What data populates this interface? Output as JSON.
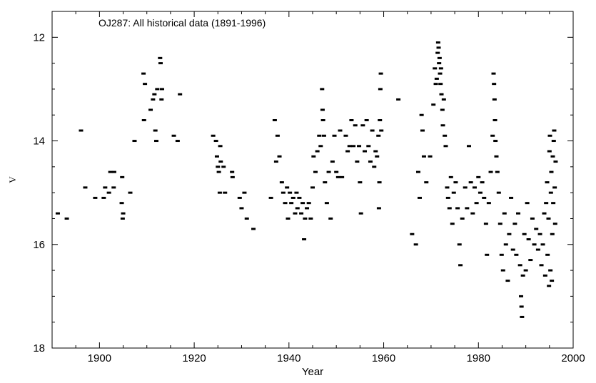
{
  "chart_data": {
    "type": "scatter",
    "title": "OJ287: All historical data (1891-1996)",
    "xlabel": "Year",
    "ylabel": "V",
    "xlim": [
      1890,
      2000
    ],
    "ylim": [
      18,
      11.5
    ],
    "y_inverted": true,
    "x_ticks": [
      1900,
      1920,
      1940,
      1960,
      1980,
      2000
    ],
    "y_ticks": [
      12,
      14,
      16,
      18
    ],
    "grid": false,
    "marker": "small filled dash",
    "series": [
      {
        "values": [
          [
            1891.2,
            15.4
          ],
          [
            1893.1,
            15.5
          ],
          [
            1896.1,
            13.8
          ],
          [
            1897.0,
            14.9
          ],
          [
            1899.1,
            15.1
          ],
          [
            1900.9,
            15.1
          ],
          [
            1901.2,
            14.9
          ],
          [
            1902.0,
            15.0
          ],
          [
            1902.3,
            14.6
          ],
          [
            1903.0,
            14.9
          ],
          [
            1903.1,
            14.6
          ],
          [
            1904.7,
            15.2
          ],
          [
            1904.8,
            14.7
          ],
          [
            1904.9,
            15.5
          ],
          [
            1905.0,
            15.4
          ],
          [
            1906.5,
            15.0
          ],
          [
            1907.4,
            14.0
          ],
          [
            1909.3,
            12.7
          ],
          [
            1909.6,
            12.9
          ],
          [
            1909.4,
            13.6
          ],
          [
            1910.8,
            13.4
          ],
          [
            1911.3,
            13.2
          ],
          [
            1911.6,
            13.1
          ],
          [
            1911.8,
            13.8
          ],
          [
            1912.0,
            14.0
          ],
          [
            1912.2,
            13.0
          ],
          [
            1912.8,
            12.4
          ],
          [
            1912.9,
            12.5
          ],
          [
            1913.1,
            13.2
          ],
          [
            1913.2,
            13.0
          ],
          [
            1915.7,
            13.9
          ],
          [
            1916.5,
            14.0
          ],
          [
            1917.0,
            13.1
          ],
          [
            1924.0,
            13.9
          ],
          [
            1924.6,
            14.0
          ],
          [
            1924.8,
            14.3
          ],
          [
            1925.0,
            14.5
          ],
          [
            1925.2,
            14.6
          ],
          [
            1925.4,
            15.0
          ],
          [
            1925.5,
            14.1
          ],
          [
            1925.6,
            14.4
          ],
          [
            1926.2,
            14.5
          ],
          [
            1926.5,
            15.0
          ],
          [
            1928.0,
            14.6
          ],
          [
            1928.1,
            14.7
          ],
          [
            1929.6,
            15.1
          ],
          [
            1930.0,
            15.3
          ],
          [
            1930.6,
            15.0
          ],
          [
            1931.1,
            15.5
          ],
          [
            1932.5,
            15.7
          ],
          [
            1936.2,
            15.1
          ],
          [
            1937.0,
            13.6
          ],
          [
            1937.3,
            14.4
          ],
          [
            1937.6,
            13.9
          ],
          [
            1938.0,
            14.3
          ],
          [
            1938.5,
            14.8
          ],
          [
            1938.8,
            15.0
          ],
          [
            1939.2,
            15.2
          ],
          [
            1939.6,
            14.9
          ],
          [
            1939.8,
            15.5
          ],
          [
            1940.2,
            15.0
          ],
          [
            1940.5,
            15.2
          ],
          [
            1940.9,
            15.1
          ],
          [
            1941.3,
            15.4
          ],
          [
            1941.6,
            15.0
          ],
          [
            1941.8,
            15.3
          ],
          [
            1942.2,
            15.1
          ],
          [
            1942.6,
            15.4
          ],
          [
            1942.9,
            15.2
          ],
          [
            1943.2,
            15.9
          ],
          [
            1943.4,
            15.5
          ],
          [
            1943.8,
            15.3
          ],
          [
            1944.2,
            15.2
          ],
          [
            1944.6,
            15.5
          ],
          [
            1945.0,
            14.9
          ],
          [
            1945.2,
            14.3
          ],
          [
            1945.6,
            14.6
          ],
          [
            1946.0,
            14.2
          ],
          [
            1946.4,
            13.9
          ],
          [
            1946.7,
            14.1
          ],
          [
            1947.0,
            13.0
          ],
          [
            1947.1,
            13.4
          ],
          [
            1947.2,
            13.6
          ],
          [
            1947.4,
            13.9
          ],
          [
            1947.6,
            14.8
          ],
          [
            1948.0,
            15.2
          ],
          [
            1948.4,
            14.6
          ],
          [
            1948.8,
            15.5
          ],
          [
            1949.2,
            14.4
          ],
          [
            1949.6,
            13.9
          ],
          [
            1950.0,
            14.6
          ],
          [
            1950.4,
            14.7
          ],
          [
            1950.8,
            13.8
          ],
          [
            1951.2,
            14.7
          ],
          [
            1952.0,
            13.9
          ],
          [
            1952.4,
            14.2
          ],
          [
            1952.8,
            14.1
          ],
          [
            1953.2,
            13.6
          ],
          [
            1953.6,
            14.1
          ],
          [
            1954.0,
            13.7
          ],
          [
            1954.4,
            14.4
          ],
          [
            1954.8,
            14.1
          ],
          [
            1955.0,
            14.8
          ],
          [
            1955.2,
            15.4
          ],
          [
            1955.6,
            13.7
          ],
          [
            1956.0,
            14.2
          ],
          [
            1956.4,
            13.6
          ],
          [
            1956.8,
            14.1
          ],
          [
            1957.2,
            14.4
          ],
          [
            1957.6,
            13.8
          ],
          [
            1958.0,
            14.5
          ],
          [
            1958.3,
            14.2
          ],
          [
            1958.6,
            14.3
          ],
          [
            1958.9,
            13.9
          ],
          [
            1959.0,
            15.3
          ],
          [
            1959.1,
            14.8
          ],
          [
            1959.2,
            13.6
          ],
          [
            1959.3,
            13.0
          ],
          [
            1959.4,
            12.7
          ],
          [
            1959.5,
            13.8
          ],
          [
            1963.1,
            13.2
          ],
          [
            1966.0,
            15.8
          ],
          [
            1966.8,
            16.0
          ],
          [
            1967.3,
            14.6
          ],
          [
            1967.6,
            15.1
          ],
          [
            1968.0,
            13.5
          ],
          [
            1968.2,
            13.8
          ],
          [
            1968.5,
            14.3
          ],
          [
            1969.0,
            14.8
          ],
          [
            1969.8,
            14.3
          ],
          [
            1970.5,
            13.3
          ],
          [
            1970.8,
            12.6
          ],
          [
            1971.0,
            12.9
          ],
          [
            1971.2,
            12.8
          ],
          [
            1971.4,
            12.3
          ],
          [
            1971.5,
            12.1
          ],
          [
            1971.6,
            12.2
          ],
          [
            1971.7,
            12.5
          ],
          [
            1971.8,
            12.4
          ],
          [
            1971.9,
            12.7
          ],
          [
            1972.0,
            12.9
          ],
          [
            1972.1,
            12.6
          ],
          [
            1972.2,
            13.1
          ],
          [
            1972.4,
            13.4
          ],
          [
            1972.5,
            13.7
          ],
          [
            1972.7,
            13.2
          ],
          [
            1972.9,
            13.9
          ],
          [
            1973.1,
            14.1
          ],
          [
            1973.4,
            14.9
          ],
          [
            1973.6,
            15.1
          ],
          [
            1973.9,
            15.3
          ],
          [
            1974.2,
            14.7
          ],
          [
            1974.5,
            15.6
          ],
          [
            1974.8,
            15.0
          ],
          [
            1975.2,
            14.8
          ],
          [
            1975.6,
            15.3
          ],
          [
            1976.0,
            16.0
          ],
          [
            1976.2,
            16.4
          ],
          [
            1976.6,
            15.5
          ],
          [
            1977.2,
            14.9
          ],
          [
            1977.6,
            15.3
          ],
          [
            1978.0,
            14.1
          ],
          [
            1978.4,
            14.8
          ],
          [
            1978.8,
            15.4
          ],
          [
            1979.2,
            14.9
          ],
          [
            1979.6,
            15.2
          ],
          [
            1980.0,
            14.7
          ],
          [
            1980.4,
            15.0
          ],
          [
            1980.8,
            14.8
          ],
          [
            1981.2,
            15.1
          ],
          [
            1981.6,
            15.6
          ],
          [
            1981.8,
            16.2
          ],
          [
            1982.2,
            15.2
          ],
          [
            1982.6,
            14.6
          ],
          [
            1983.0,
            13.9
          ],
          [
            1983.2,
            12.7
          ],
          [
            1983.3,
            12.9
          ],
          [
            1983.4,
            13.2
          ],
          [
            1983.5,
            13.6
          ],
          [
            1983.6,
            14.0
          ],
          [
            1983.8,
            14.3
          ],
          [
            1984.0,
            14.6
          ],
          [
            1984.3,
            15.0
          ],
          [
            1984.6,
            15.6
          ],
          [
            1984.9,
            16.2
          ],
          [
            1985.2,
            16.5
          ],
          [
            1985.5,
            15.4
          ],
          [
            1985.8,
            16.0
          ],
          [
            1986.2,
            16.7
          ],
          [
            1986.5,
            15.8
          ],
          [
            1986.9,
            15.1
          ],
          [
            1987.3,
            16.1
          ],
          [
            1987.7,
            15.6
          ],
          [
            1988.0,
            16.2
          ],
          [
            1988.4,
            15.4
          ],
          [
            1988.8,
            16.4
          ],
          [
            1989.0,
            17.0
          ],
          [
            1989.1,
            17.2
          ],
          [
            1989.2,
            17.4
          ],
          [
            1989.4,
            16.6
          ],
          [
            1989.7,
            15.8
          ],
          [
            1990.0,
            16.5
          ],
          [
            1990.3,
            15.2
          ],
          [
            1990.6,
            15.9
          ],
          [
            1991.0,
            16.3
          ],
          [
            1991.4,
            15.5
          ],
          [
            1991.8,
            16.0
          ],
          [
            1992.2,
            15.7
          ],
          [
            1992.6,
            16.1
          ],
          [
            1993.0,
            15.8
          ],
          [
            1993.3,
            16.4
          ],
          [
            1993.6,
            16.0
          ],
          [
            1993.9,
            15.4
          ],
          [
            1994.1,
            16.6
          ],
          [
            1994.3,
            15.2
          ],
          [
            1994.5,
            14.8
          ],
          [
            1994.6,
            16.2
          ],
          [
            1994.8,
            15.5
          ],
          [
            1994.9,
            16.8
          ],
          [
            1995.0,
            14.2
          ],
          [
            1995.1,
            13.9
          ],
          [
            1995.2,
            16.5
          ],
          [
            1995.3,
            15.0
          ],
          [
            1995.4,
            14.6
          ],
          [
            1995.5,
            16.7
          ],
          [
            1995.6,
            15.8
          ],
          [
            1995.7,
            14.3
          ],
          [
            1995.8,
            15.2
          ],
          [
            1995.9,
            14.0
          ],
          [
            1996.0,
            13.8
          ],
          [
            1996.1,
            14.9
          ],
          [
            1996.2,
            15.6
          ],
          [
            1996.3,
            14.4
          ]
        ]
      }
    ]
  }
}
